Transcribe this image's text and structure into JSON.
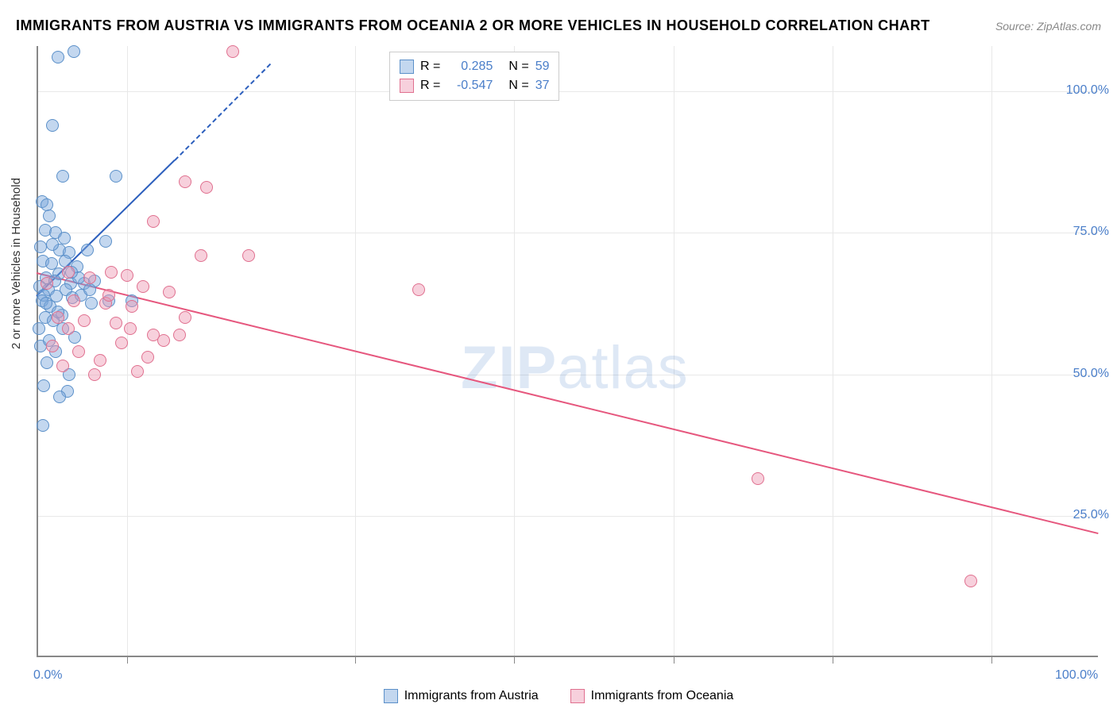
{
  "title": "IMMIGRANTS FROM AUSTRIA VS IMMIGRANTS FROM OCEANIA 2 OR MORE VEHICLES IN HOUSEHOLD CORRELATION CHART",
  "source": "Source: ZipAtlas.com",
  "y_axis_label": "2 or more Vehicles in Household",
  "watermark": "ZIPatlas",
  "chart": {
    "type": "scatter",
    "xlim": [
      0,
      100
    ],
    "ylim": [
      0,
      108
    ],
    "x_ticks": [
      0.0,
      100.0
    ],
    "x_tick_labels": [
      "0.0%",
      "100.0%"
    ],
    "y_ticks": [
      25.0,
      50.0,
      75.0,
      100.0
    ],
    "y_tick_labels": [
      "25.0%",
      "50.0%",
      "75.0%",
      "100.0%"
    ],
    "minor_x_ticks": [
      8.5,
      30,
      45,
      60,
      75,
      90
    ],
    "background_color": "#ffffff",
    "grid_color": "#e8e8e8",
    "axis_color": "#888888",
    "label_color": "#4a7ec9",
    "marker_size": 16,
    "marker_opacity": 0.45
  },
  "series": [
    {
      "name": "Immigrants from Austria",
      "color_fill": "rgba(122,167,220,0.45)",
      "color_stroke": "#5b90c9",
      "r_value": "0.285",
      "n_value": "59",
      "trend": {
        "x1": 0,
        "y1": 64,
        "x2": 13,
        "y2": 88,
        "color": "#2c5fbd"
      },
      "trend_dash": {
        "x1": 13,
        "y1": 88,
        "x2": 22,
        "y2": 105,
        "color": "#2c5fbd"
      },
      "points": [
        [
          3.5,
          107
        ],
        [
          2,
          106
        ],
        [
          1.5,
          94
        ],
        [
          2.5,
          85
        ],
        [
          7.5,
          85
        ],
        [
          0.5,
          80.5
        ],
        [
          1,
          80
        ],
        [
          1.2,
          78
        ],
        [
          0.8,
          75.5
        ],
        [
          1.8,
          75
        ],
        [
          2.6,
          74
        ],
        [
          0.4,
          72.5
        ],
        [
          2.2,
          72
        ],
        [
          3.1,
          71.5
        ],
        [
          4.8,
          72
        ],
        [
          6.5,
          73.5
        ],
        [
          0.6,
          70
        ],
        [
          1.4,
          69.5
        ],
        [
          3.8,
          69
        ],
        [
          2.1,
          67.8
        ],
        [
          0.9,
          67
        ],
        [
          1.7,
          66.5
        ],
        [
          3.2,
          66
        ],
        [
          4.5,
          66
        ],
        [
          0.3,
          65.5
        ],
        [
          1.1,
          65
        ],
        [
          2.8,
          65
        ],
        [
          0.7,
          64
        ],
        [
          1.9,
          63.8
        ],
        [
          3.4,
          63.5
        ],
        [
          0.5,
          63
        ],
        [
          5.2,
          62.5
        ],
        [
          6.8,
          63
        ],
        [
          1.3,
          62
        ],
        [
          9,
          63
        ],
        [
          2.4,
          60.5
        ],
        [
          0.8,
          60
        ],
        [
          1.6,
          59.5
        ],
        [
          0.2,
          58
        ],
        [
          3.6,
          56.5
        ],
        [
          0.4,
          55
        ],
        [
          1.8,
          54
        ],
        [
          2.9,
          47
        ],
        [
          2.2,
          46
        ],
        [
          0.6,
          41
        ],
        [
          4,
          67
        ],
        [
          3.3,
          68
        ],
        [
          5.5,
          66.5
        ],
        [
          2.7,
          70
        ],
        [
          1.5,
          73
        ],
        [
          4.2,
          64
        ],
        [
          0.9,
          62.5
        ],
        [
          2,
          61
        ],
        [
          1.2,
          56
        ],
        [
          1,
          52
        ],
        [
          3.1,
          50
        ],
        [
          0.7,
          48
        ],
        [
          5,
          65
        ],
        [
          2.5,
          58
        ]
      ]
    },
    {
      "name": "Immigrants from Oceania",
      "color_fill": "rgba(238,150,178,0.45)",
      "color_stroke": "#e0708f",
      "r_value": "-0.547",
      "n_value": "37",
      "trend": {
        "x1": 0,
        "y1": 68,
        "x2": 100,
        "y2": 22,
        "color": "#e6577e"
      },
      "points": [
        [
          18.5,
          107
        ],
        [
          14,
          84
        ],
        [
          16,
          83
        ],
        [
          11,
          77
        ],
        [
          15.5,
          71
        ],
        [
          20,
          71
        ],
        [
          3,
          68
        ],
        [
          7,
          68
        ],
        [
          8.5,
          67.5
        ],
        [
          5,
          67
        ],
        [
          1,
          66
        ],
        [
          10,
          65.5
        ],
        [
          12.5,
          64.5
        ],
        [
          36,
          65
        ],
        [
          3.5,
          63
        ],
        [
          6.5,
          62.5
        ],
        [
          9,
          62
        ],
        [
          2,
          60
        ],
        [
          4.5,
          59.5
        ],
        [
          7.5,
          59
        ],
        [
          11,
          57
        ],
        [
          13.5,
          57
        ],
        [
          8,
          55.5
        ],
        [
          1.5,
          55
        ],
        [
          4,
          54
        ],
        [
          3,
          58
        ],
        [
          10.5,
          53
        ],
        [
          6,
          52.5
        ],
        [
          2.5,
          51.5
        ],
        [
          9.5,
          50.5
        ],
        [
          12,
          56
        ],
        [
          5.5,
          50
        ],
        [
          68,
          31.5
        ],
        [
          88,
          13.5
        ],
        [
          14,
          60
        ],
        [
          6.8,
          64
        ],
        [
          8.8,
          58
        ]
      ]
    }
  ],
  "legend_top": {
    "r_label": "R =",
    "n_label": "N ="
  },
  "legend_bottom": {
    "items": [
      "Immigrants from Austria",
      "Immigrants from Oceania"
    ]
  }
}
